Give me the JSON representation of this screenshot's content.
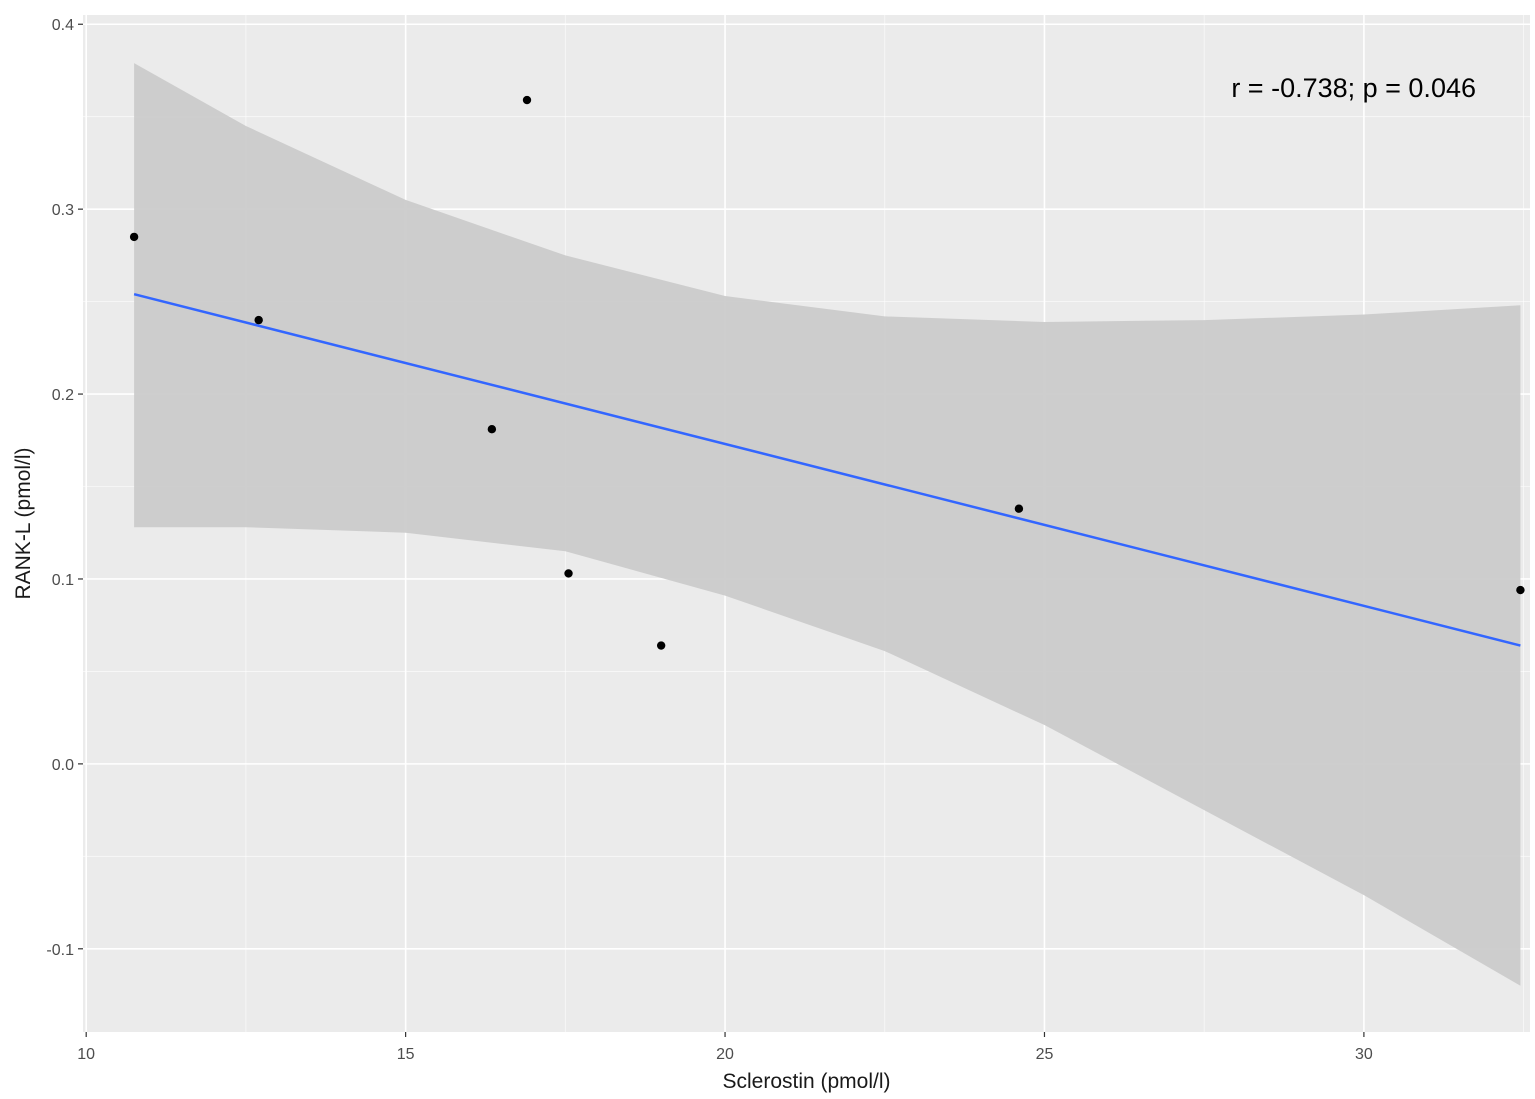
{
  "chart_data": {
    "type": "scatter",
    "title": "",
    "xlabel": "Sclerostin (pmol/l)",
    "ylabel": "RANK-L (pmol/l)",
    "xlim": [
      9.95,
      32.6
    ],
    "ylim": [
      -0.145,
      0.405
    ],
    "x_ticks": [
      10,
      15,
      20,
      25,
      30
    ],
    "x_tick_labels": [
      "10",
      "15",
      "20",
      "25",
      "30"
    ],
    "y_ticks": [
      -0.1,
      0.0,
      0.1,
      0.2,
      0.3,
      0.4
    ],
    "y_tick_labels": [
      "-0.1",
      "0.0",
      "0.1",
      "0.2",
      "0.3",
      "0.4"
    ],
    "grid": true,
    "points": [
      {
        "x": 10.75,
        "y": 0.285
      },
      {
        "x": 12.7,
        "y": 0.24
      },
      {
        "x": 16.35,
        "y": 0.181
      },
      {
        "x": 16.9,
        "y": 0.359
      },
      {
        "x": 17.55,
        "y": 0.103
      },
      {
        "x": 19.0,
        "y": 0.064
      },
      {
        "x": 24.6,
        "y": 0.138
      },
      {
        "x": 32.45,
        "y": 0.094
      }
    ],
    "fit_line": {
      "type": "linear",
      "x": [
        10.75,
        32.45
      ],
      "y": [
        0.254,
        0.064
      ]
    },
    "confidence_band": {
      "x": [
        10.75,
        12.5,
        15.0,
        17.5,
        20.0,
        22.5,
        25.0,
        27.5,
        30.0,
        32.45
      ],
      "upper": [
        0.379,
        0.345,
        0.305,
        0.275,
        0.253,
        0.242,
        0.239,
        0.24,
        0.243,
        0.248
      ],
      "lower": [
        0.128,
        0.128,
        0.125,
        0.115,
        0.091,
        0.061,
        0.021,
        -0.025,
        -0.071,
        -0.12
      ]
    },
    "annotation": "r = -0.738; p = 0.046",
    "colors": {
      "panel_background": "#ebebeb",
      "grid_major": "#ffffff",
      "band": "#cbcbcb",
      "line": "#3366ff",
      "point": "#000000"
    }
  }
}
